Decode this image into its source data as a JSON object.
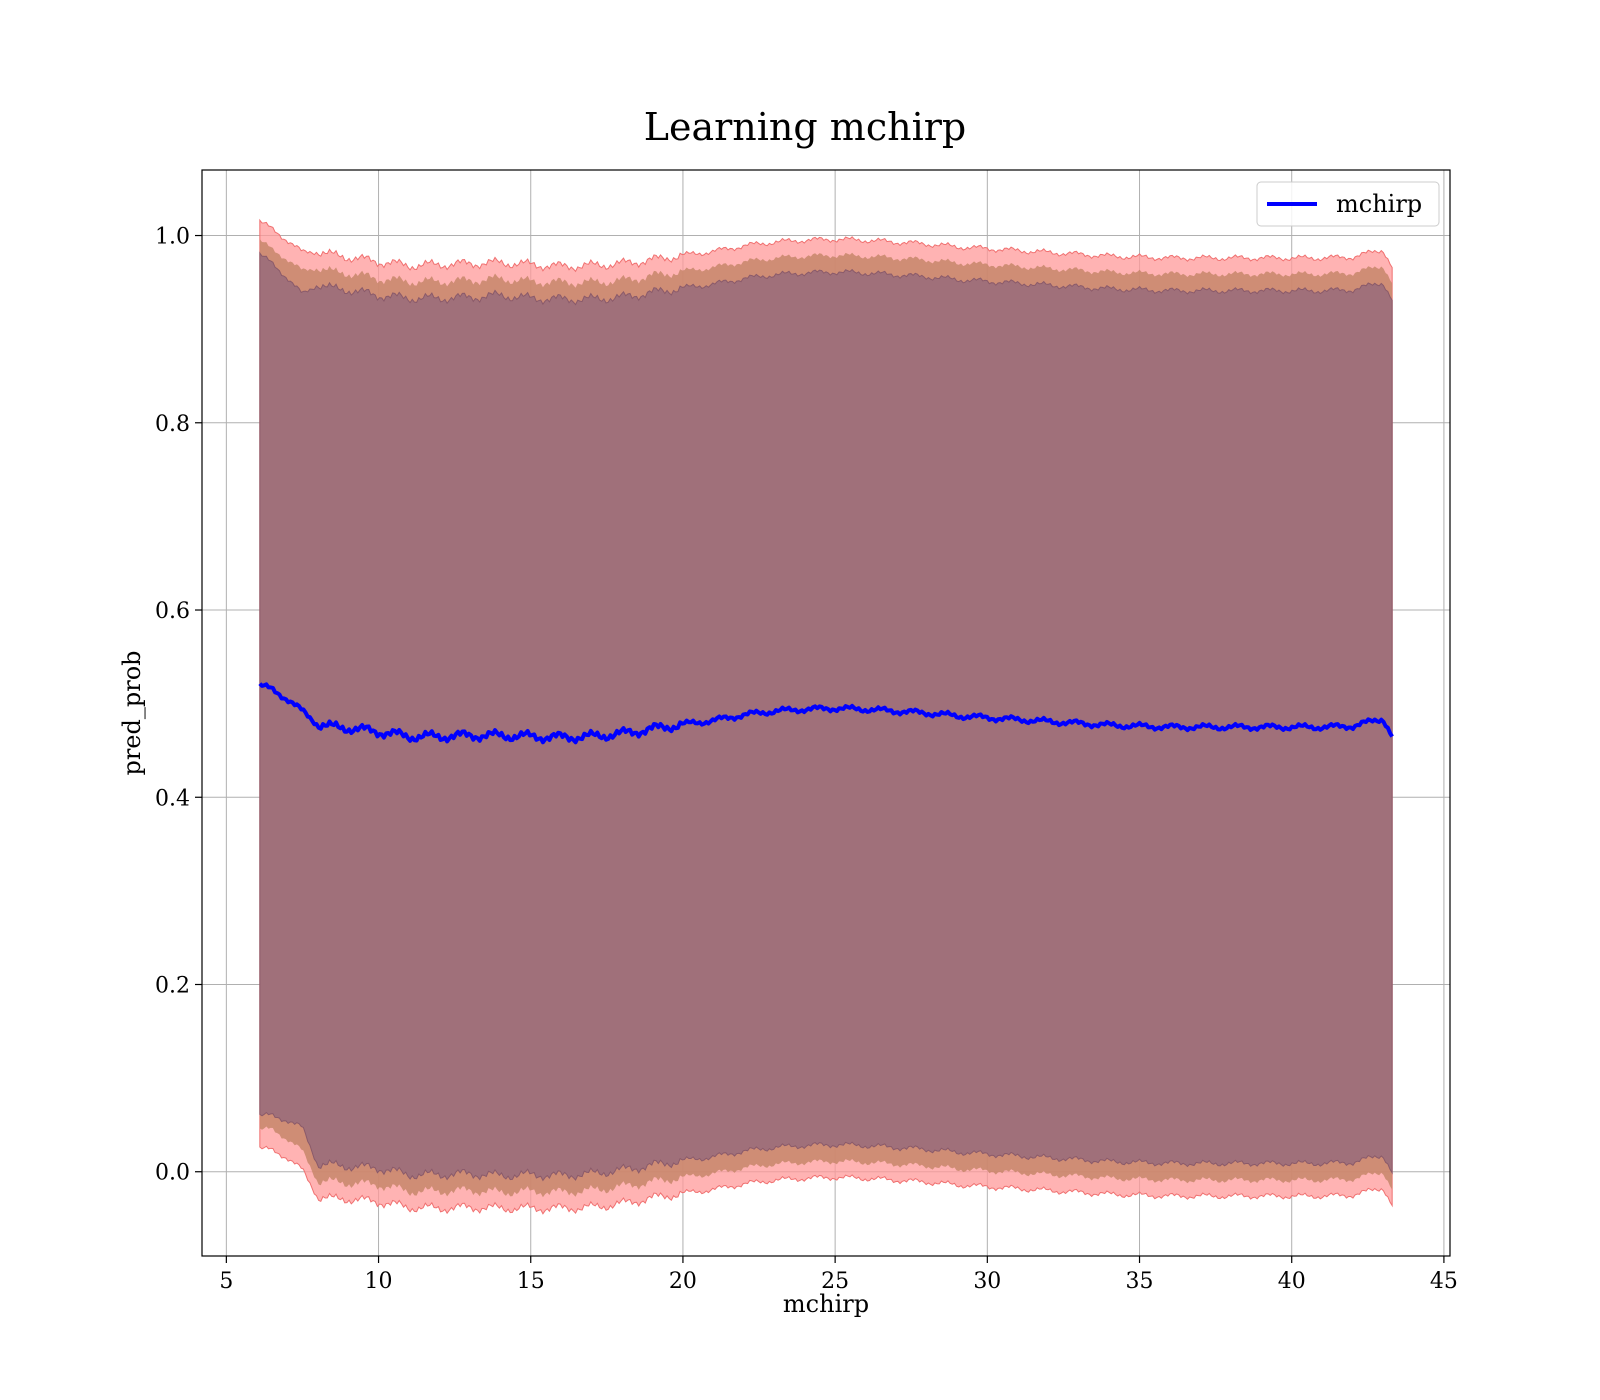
{
  "chart_data": {
    "type": "line",
    "title": "Learning mchirp",
    "xlabel": "mchirp",
    "ylabel": "pred_prob",
    "xlim": [
      4.2,
      45.2
    ],
    "ylim": [
      -0.09,
      1.07
    ],
    "xticks": [
      5,
      10,
      15,
      20,
      25,
      30,
      35,
      40,
      45
    ],
    "yticks": [
      0.0,
      0.2,
      0.4,
      0.6,
      0.8,
      1.0
    ],
    "xtick_labels": [
      "5",
      "10",
      "15",
      "20",
      "25",
      "30",
      "35",
      "40",
      "45"
    ],
    "ytick_labels": [
      "0.0",
      "0.2",
      "0.4",
      "0.6",
      "0.8",
      "1.0"
    ],
    "grid": true,
    "legend_position": "top-right",
    "colors": {
      "line": "#0000ff",
      "band_outer": "#ff9a9a",
      "band_middle": "#c7866a",
      "band_inner": "#a0707a"
    },
    "series": [
      {
        "name": "mchirp",
        "x": [
          6.1,
          6.5,
          7.0,
          7.5,
          8.0,
          8.5,
          9.0,
          10.0,
          11.0,
          12.0,
          13.0,
          14.0,
          15.0,
          16.0,
          17.0,
          18.0,
          19.0,
          20.0,
          21.0,
          22.0,
          23.0,
          24.0,
          25.0,
          26.0,
          27.0,
          28.0,
          29.0,
          30.0,
          31.0,
          32.0,
          33.0,
          34.0,
          35.0,
          36.0,
          37.0,
          38.0,
          39.0,
          40.0,
          41.0,
          42.0,
          43.0,
          43.3
        ],
        "mean": [
          0.52,
          0.515,
          0.505,
          0.492,
          0.478,
          0.475,
          0.474,
          0.47,
          0.465,
          0.465,
          0.466,
          0.466,
          0.465,
          0.464,
          0.465,
          0.468,
          0.473,
          0.478,
          0.482,
          0.488,
          0.492,
          0.494,
          0.495,
          0.494,
          0.492,
          0.49,
          0.487,
          0.485,
          0.483,
          0.481,
          0.479,
          0.477,
          0.476,
          0.475,
          0.475,
          0.475,
          0.475,
          0.475,
          0.475,
          0.476,
          0.484,
          0.465
        ],
        "inner_band_halfwidth": [
          0.46,
          0.455,
          0.45,
          0.445,
          0.47,
          0.468,
          0.468,
          0.466,
          0.468,
          0.468,
          0.468,
          0.47,
          0.468,
          0.468,
          0.467,
          0.466,
          0.466,
          0.466,
          0.466,
          0.466,
          0.466,
          0.466,
          0.466,
          0.466,
          0.466,
          0.466,
          0.466,
          0.466,
          0.466,
          0.466,
          0.466,
          0.466,
          0.466,
          0.466,
          0.466,
          0.466,
          0.466,
          0.466,
          0.466,
          0.466,
          0.466,
          0.466
        ],
        "middle_band_halfwidth": [
          0.475,
          0.47,
          0.47,
          0.47,
          0.488,
          0.486,
          0.486,
          0.484,
          0.486,
          0.486,
          0.486,
          0.488,
          0.486,
          0.486,
          0.485,
          0.484,
          0.484,
          0.484,
          0.484,
          0.484,
          0.484,
          0.484,
          0.484,
          0.484,
          0.484,
          0.484,
          0.484,
          0.484,
          0.484,
          0.484,
          0.484,
          0.484,
          0.484,
          0.484,
          0.484,
          0.484,
          0.484,
          0.484,
          0.484,
          0.484,
          0.484,
          0.484
        ],
        "outer_band_halfwidth": [
          0.495,
          0.492,
          0.49,
          0.49,
          0.505,
          0.504,
          0.503,
          0.502,
          0.503,
          0.504,
          0.504,
          0.505,
          0.504,
          0.503,
          0.503,
          0.502,
          0.501,
          0.501,
          0.501,
          0.501,
          0.501,
          0.501,
          0.501,
          0.501,
          0.501,
          0.501,
          0.501,
          0.501,
          0.501,
          0.501,
          0.501,
          0.501,
          0.501,
          0.501,
          0.501,
          0.501,
          0.501,
          0.501,
          0.501,
          0.501,
          0.501,
          0.501
        ]
      }
    ]
  }
}
